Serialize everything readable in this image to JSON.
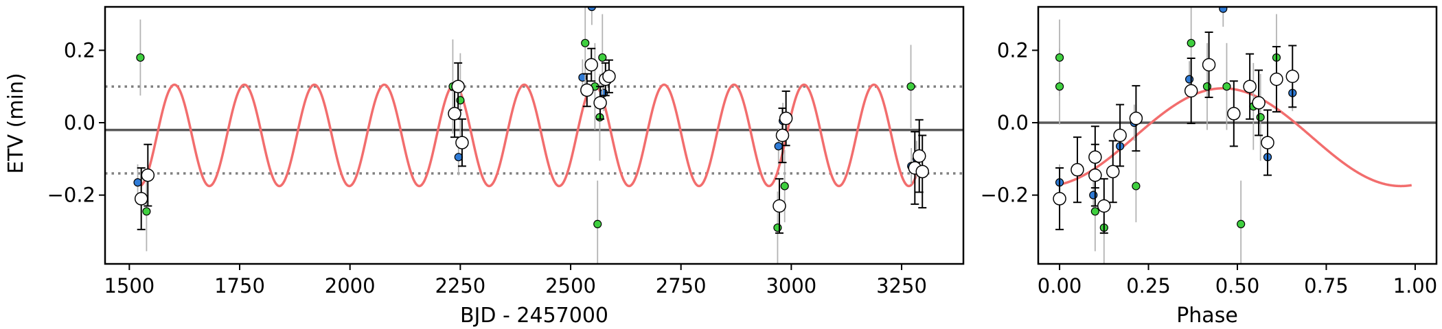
{
  "colors": {
    "model": "#f26d6d",
    "reference_line": "#595959",
    "band_line": "#808080",
    "grey_errorbar": "#b3b3b3",
    "black_errorbar": "#000000",
    "blue_point": "#2f7bd6",
    "green_point": "#3fcf3f",
    "binned_point": "#ffffff"
  },
  "chart_data": [
    {
      "type": "scatter",
      "title": "",
      "xlabel": "BJD - 2457000",
      "ylabel": "ETV (min)",
      "xlim": [
        1445,
        3390
      ],
      "ylim": [
        -0.39,
        0.32
      ],
      "xticks": [
        1500,
        1750,
        2000,
        2250,
        2500,
        2750,
        3000,
        3250
      ],
      "xtick_labels": [
        "1500",
        "1750",
        "2000",
        "2250",
        "2500",
        "2750",
        "3000",
        "3250"
      ],
      "yticks": [
        -0.2,
        0.0,
        0.2
      ],
      "ytick_labels": [
        "−0.2",
        "0.0",
        "0.2"
      ],
      "grid": false,
      "reference_lines": [
        {
          "y": -0.02,
          "style": "solid"
        },
        {
          "y": 0.1,
          "style": "dotted"
        },
        {
          "y": -0.14,
          "style": "dotted"
        }
      ],
      "model_curve": {
        "period": 158.5,
        "x0": 1523,
        "mean": -0.035,
        "amplitude": 0.14,
        "x_start": 1525,
        "x_end": 3285
      },
      "series": [
        {
          "style": "blue",
          "points": [
            {
              "x": 1519,
              "y": -0.165,
              "err": 0.05
            },
            {
              "x": 2246,
              "y": -0.095,
              "err": 0.05
            },
            {
              "x": 2527,
              "y": 0.125,
              "err": 0.05
            },
            {
              "x": 2548,
              "y": 0.32,
              "err": 0.05
            },
            {
              "x": 2575,
              "y": 0.082,
              "err": 0.05
            },
            {
              "x": 2971,
              "y": -0.065,
              "err": 0.05
            },
            {
              "x": 2981,
              "y": 0.005,
              "err": 0.05
            },
            {
              "x": 3272,
              "y": -0.12,
              "err": 0.05
            },
            {
              "x": 3284,
              "y": -0.1,
              "err": 0.05
            }
          ]
        },
        {
          "style": "green",
          "points": [
            {
              "x": 1525,
              "y": 0.18,
              "err": 0.105
            },
            {
              "x": 1539,
              "y": -0.245,
              "err": 0.11
            },
            {
              "x": 2233,
              "y": 0.1,
              "err": 0.13
            },
            {
              "x": 2250,
              "y": 0.062,
              "err": 0.13
            },
            {
              "x": 2533,
              "y": 0.22,
              "err": 0.12
            },
            {
              "x": 2555,
              "y": 0.1,
              "err": 0.12
            },
            {
              "x": 2561,
              "y": -0.28,
              "err": 0.12
            },
            {
              "x": 2566,
              "y": 0.015,
              "err": 0.12
            },
            {
              "x": 2572,
              "y": 0.18,
              "err": 0.12
            },
            {
              "x": 2969,
              "y": -0.29,
              "err": 0.1
            },
            {
              "x": 2985,
              "y": -0.175,
              "err": 0.1
            },
            {
              "x": 3271,
              "y": 0.1,
              "err": 0.115
            }
          ]
        },
        {
          "style": "binned",
          "points": [
            {
              "x": 1527,
              "y": -0.21,
              "err": 0.085
            },
            {
              "x": 1542,
              "y": -0.145,
              "err": 0.085
            },
            {
              "x": 2237,
              "y": 0.025,
              "err": 0.065
            },
            {
              "x": 2245,
              "y": 0.1,
              "err": 0.065
            },
            {
              "x": 2254,
              "y": -0.055,
              "err": 0.065
            },
            {
              "x": 2537,
              "y": 0.09,
              "err": 0.045
            },
            {
              "x": 2547,
              "y": 0.16,
              "err": 0.045
            },
            {
              "x": 2567,
              "y": 0.055,
              "err": 0.045
            },
            {
              "x": 2579,
              "y": 0.12,
              "err": 0.045
            },
            {
              "x": 2587,
              "y": 0.128,
              "err": 0.045
            },
            {
              "x": 2973,
              "y": -0.23,
              "err": 0.075
            },
            {
              "x": 2980,
              "y": -0.035,
              "err": 0.075
            },
            {
              "x": 2988,
              "y": 0.012,
              "err": 0.075
            },
            {
              "x": 3280,
              "y": -0.125,
              "err": 0.1
            },
            {
              "x": 3290,
              "y": -0.092,
              "err": 0.1
            },
            {
              "x": 3297,
              "y": -0.135,
              "err": 0.1
            }
          ]
        }
      ]
    },
    {
      "type": "scatter",
      "title": "",
      "xlabel": "Phase",
      "ylabel": "",
      "xlim": [
        -0.06,
        1.06
      ],
      "ylim": [
        -0.39,
        0.32
      ],
      "xticks": [
        0.0,
        0.25,
        0.5,
        0.75,
        1.0
      ],
      "xtick_labels": [
        "0.00",
        "0.25",
        "0.50",
        "0.75",
        "1.00"
      ],
      "yticks": [
        -0.2,
        0.0,
        0.2
      ],
      "ytick_labels": [
        "−0.2",
        "0.0",
        "0.2"
      ],
      "grid": false,
      "reference_lines": [
        {
          "y": 0.0,
          "style": "solid"
        }
      ],
      "model_curve": {
        "mean": -0.04,
        "amplitude": 0.135,
        "phase_peak": 0.46,
        "x_start": 0.0,
        "x_end": 0.99
      },
      "series": [
        {
          "style": "blue",
          "points": [
            {
              "x": 0.0,
              "y": -0.165,
              "err": 0.05
            },
            {
              "x": 0.095,
              "y": -0.2,
              "err": 0.05
            },
            {
              "x": 0.21,
              "y": 0.0,
              "err": 0.05
            },
            {
              "x": 0.365,
              "y": 0.12,
              "err": 0.05
            },
            {
              "x": 0.46,
              "y": 0.315,
              "err": 0.05
            },
            {
              "x": 0.585,
              "y": -0.095,
              "err": 0.05
            },
            {
              "x": 0.655,
              "y": 0.082,
              "err": 0.05
            },
            {
              "x": 0.17,
              "y": -0.065,
              "err": 0.05
            }
          ]
        },
        {
          "style": "green",
          "points": [
            {
              "x": 0.0,
              "y": 0.18,
              "err": 0.105
            },
            {
              "x": 0.0,
              "y": 0.1,
              "err": 0.105
            },
            {
              "x": 0.1,
              "y": -0.245,
              "err": 0.11
            },
            {
              "x": 0.125,
              "y": -0.29,
              "err": 0.11
            },
            {
              "x": 0.215,
              "y": -0.175,
              "err": 0.1
            },
            {
              "x": 0.37,
              "y": 0.22,
              "err": 0.12
            },
            {
              "x": 0.415,
              "y": 0.1,
              "err": 0.12
            },
            {
              "x": 0.47,
              "y": 0.1,
              "err": 0.12
            },
            {
              "x": 0.51,
              "y": -0.28,
              "err": 0.12
            },
            {
              "x": 0.545,
              "y": 0.045,
              "err": 0.12
            },
            {
              "x": 0.565,
              "y": 0.015,
              "err": 0.12
            },
            {
              "x": 0.61,
              "y": 0.18,
              "err": 0.12
            }
          ]
        },
        {
          "style": "binned",
          "points": [
            {
              "x": 0.0,
              "y": -0.21,
              "err": 0.085
            },
            {
              "x": 0.05,
              "y": -0.13,
              "err": 0.09
            },
            {
              "x": 0.1,
              "y": -0.095,
              "err": 0.085
            },
            {
              "x": 0.1,
              "y": -0.145,
              "err": 0.085
            },
            {
              "x": 0.125,
              "y": -0.23,
              "err": 0.075
            },
            {
              "x": 0.15,
              "y": -0.135,
              "err": 0.085
            },
            {
              "x": 0.17,
              "y": -0.035,
              "err": 0.085
            },
            {
              "x": 0.215,
              "y": 0.012,
              "err": 0.09
            },
            {
              "x": 0.37,
              "y": 0.088,
              "err": 0.09
            },
            {
              "x": 0.42,
              "y": 0.16,
              "err": 0.09
            },
            {
              "x": 0.49,
              "y": 0.025,
              "err": 0.09
            },
            {
              "x": 0.535,
              "y": 0.1,
              "err": 0.09
            },
            {
              "x": 0.56,
              "y": 0.055,
              "err": 0.09
            },
            {
              "x": 0.585,
              "y": -0.055,
              "err": 0.09
            },
            {
              "x": 0.61,
              "y": 0.12,
              "err": 0.09
            },
            {
              "x": 0.655,
              "y": 0.128,
              "err": 0.085
            }
          ]
        }
      ]
    }
  ]
}
